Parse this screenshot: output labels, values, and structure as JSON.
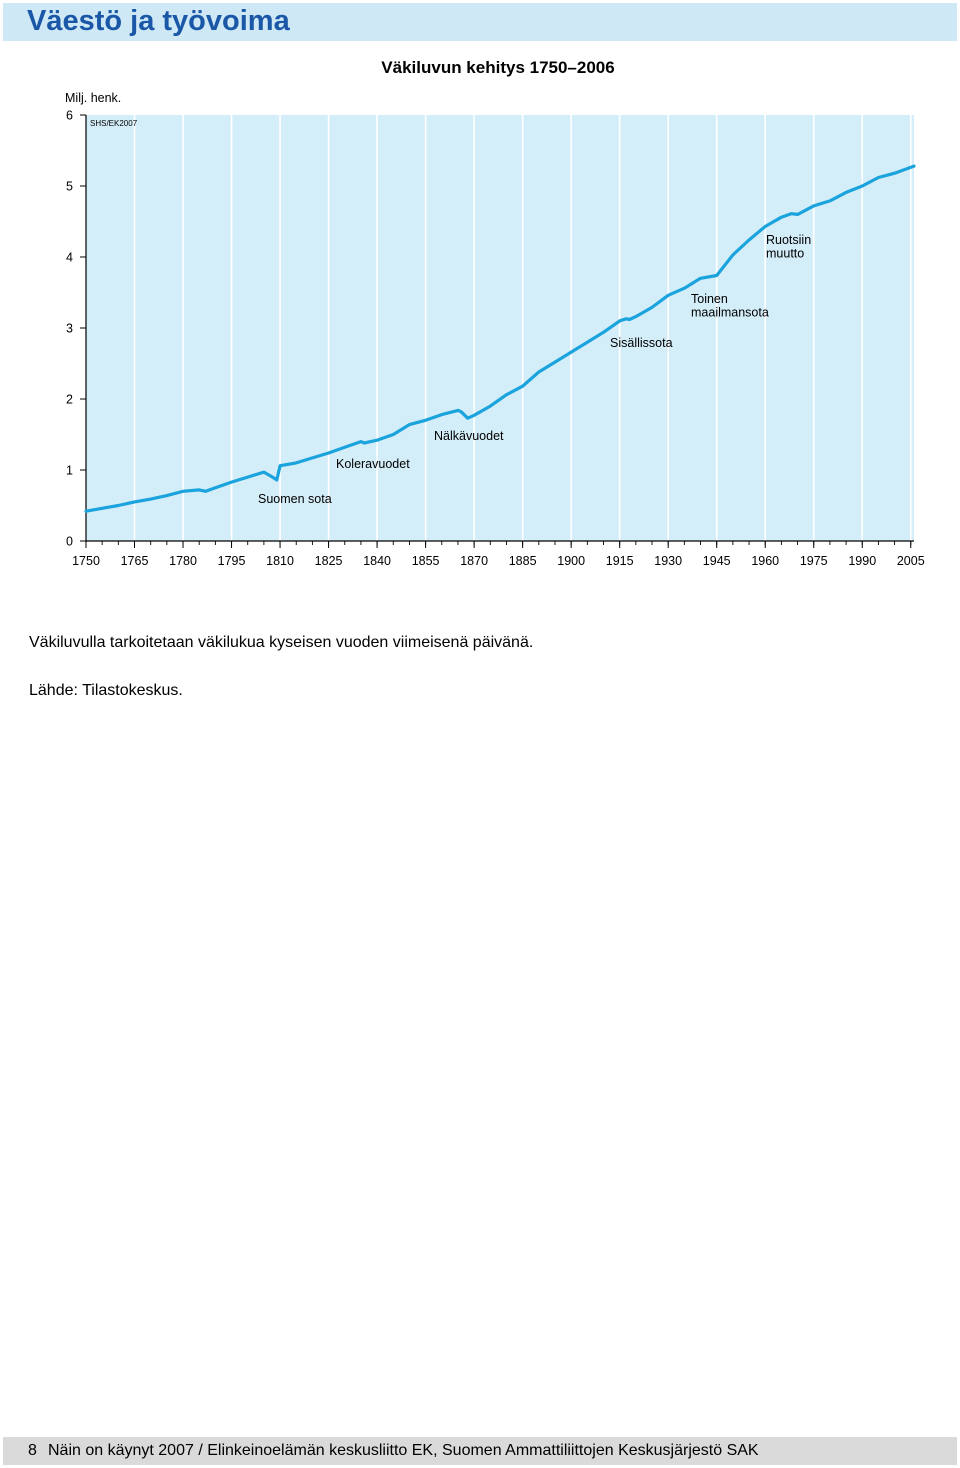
{
  "header": {
    "title": "Väestö ja työvoima"
  },
  "chart_data": {
    "type": "line",
    "title": "Väkiluvun kehitys 1750–2006",
    "ylabel": "Milj. henk.",
    "source_tag": "SHS/EK2007",
    "xlim": [
      1750,
      2006
    ],
    "ylim": [
      0,
      6
    ],
    "yticks": [
      "0",
      "1",
      "2",
      "3",
      "4",
      "5",
      "6"
    ],
    "xticks": [
      "1750",
      "1765",
      "1780",
      "1795",
      "1810",
      "1825",
      "1840",
      "1855",
      "1870",
      "1885",
      "1900",
      "1915",
      "1930",
      "1945",
      "1960",
      "1975",
      "1990",
      "2005"
    ],
    "grid": true,
    "line_color": "#1aa3dc",
    "background_color": "#d4eef9",
    "series": [
      {
        "x": [
          1750,
          1755,
          1760,
          1765,
          1770,
          1775,
          1780,
          1785,
          1787,
          1790,
          1795,
          1800,
          1805,
          1808,
          1809,
          1810,
          1815,
          1820,
          1825,
          1830,
          1835,
          1836,
          1840,
          1845,
          1850,
          1855,
          1860,
          1865,
          1866,
          1868,
          1870,
          1875,
          1880,
          1885,
          1890,
          1895,
          1900,
          1905,
          1910,
          1915,
          1917,
          1918,
          1920,
          1925,
          1930,
          1935,
          1940,
          1945,
          1950,
          1955,
          1960,
          1965,
          1968,
          1970,
          1975,
          1980,
          1985,
          1990,
          1995,
          2000,
          2006
        ],
        "values": [
          0.42,
          0.46,
          0.5,
          0.55,
          0.59,
          0.64,
          0.7,
          0.72,
          0.7,
          0.75,
          0.83,
          0.9,
          0.97,
          0.89,
          0.86,
          1.06,
          1.1,
          1.17,
          1.24,
          1.32,
          1.4,
          1.38,
          1.42,
          1.5,
          1.64,
          1.7,
          1.78,
          1.84,
          1.82,
          1.73,
          1.77,
          1.9,
          2.06,
          2.18,
          2.38,
          2.52,
          2.66,
          2.8,
          2.94,
          3.1,
          3.13,
          3.12,
          3.16,
          3.29,
          3.46,
          3.56,
          3.7,
          3.74,
          4.03,
          4.24,
          4.43,
          4.56,
          4.61,
          4.6,
          4.72,
          4.79,
          4.91,
          5.0,
          5.12,
          5.18,
          5.28
        ]
      }
    ],
    "annotations": [
      {
        "text": "Suomen sota",
        "x": 1808
      },
      {
        "text": "Koleravuodet",
        "x": 1831
      },
      {
        "text": "Nälkävuodet",
        "x": 1868
      },
      {
        "text": "Sisällissota",
        "x": 1918
      },
      {
        "text": "Toinen maailmansota",
        "x": 1942
      },
      {
        "text": "Ruotsiin muutto",
        "x": 1970
      }
    ]
  },
  "notes": {
    "definition": "Väkiluvulla tarkoitetaan väkilukua kyseisen vuoden viimeisenä päivänä.",
    "source": "Lähde: Tilastokeskus."
  },
  "footer": {
    "page_number": "8",
    "text": "Näin on käynyt 2007 / Elinkeinoelämän keskusliitto EK, Suomen Ammattiliittojen Keskusjärjestö SAK"
  }
}
